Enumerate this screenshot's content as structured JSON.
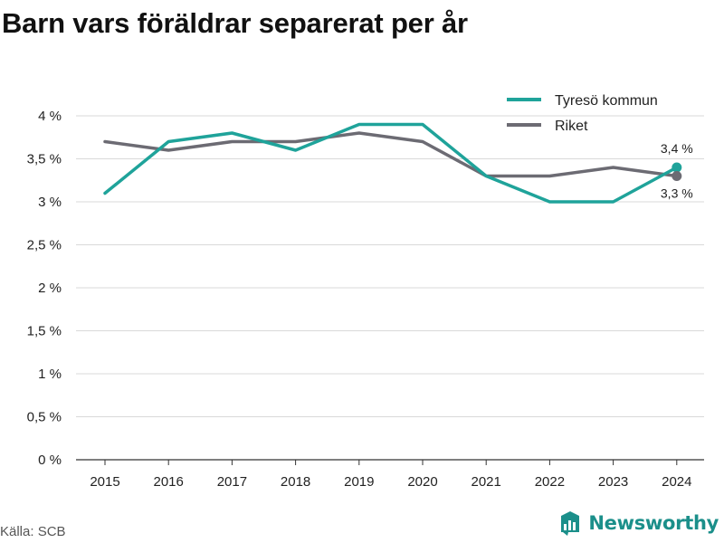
{
  "title": "Barn vars föräldrar separerat per år",
  "source": "Källa: SCB",
  "brand": {
    "name": "Newsworthy",
    "icon": "newsworthy-logo-icon",
    "color": "#1b8f8a"
  },
  "chart_data": {
    "type": "line",
    "title": "Barn vars föräldrar separerat per år",
    "xlabel": "",
    "ylabel": "",
    "categories": [
      "2015",
      "2016",
      "2017",
      "2018",
      "2019",
      "2020",
      "2021",
      "2022",
      "2023",
      "2024"
    ],
    "series": [
      {
        "name": "Tyresö kommun",
        "color": "#1fa39a",
        "values": [
          3.1,
          3.7,
          3.8,
          3.6,
          3.9,
          3.9,
          3.3,
          3.0,
          3.0,
          3.4
        ],
        "end_label": "3,4 %"
      },
      {
        "name": "Riket",
        "color": "#6c6b73",
        "values": [
          3.7,
          3.6,
          3.7,
          3.7,
          3.8,
          3.7,
          3.3,
          3.3,
          3.4,
          3.3
        ],
        "end_label": "3,3 %"
      }
    ],
    "ylim": [
      0,
      4
    ],
    "yticks": [
      0,
      0.5,
      1,
      1.5,
      2,
      2.5,
      3,
      3.5,
      4
    ],
    "ytick_labels": [
      "0 %",
      "0,5 %",
      "1 %",
      "1,5 %",
      "2 %",
      "2,5 %",
      "3 %",
      "3,5 %",
      "4 %"
    ],
    "grid": true,
    "legend_position": "top-right"
  }
}
